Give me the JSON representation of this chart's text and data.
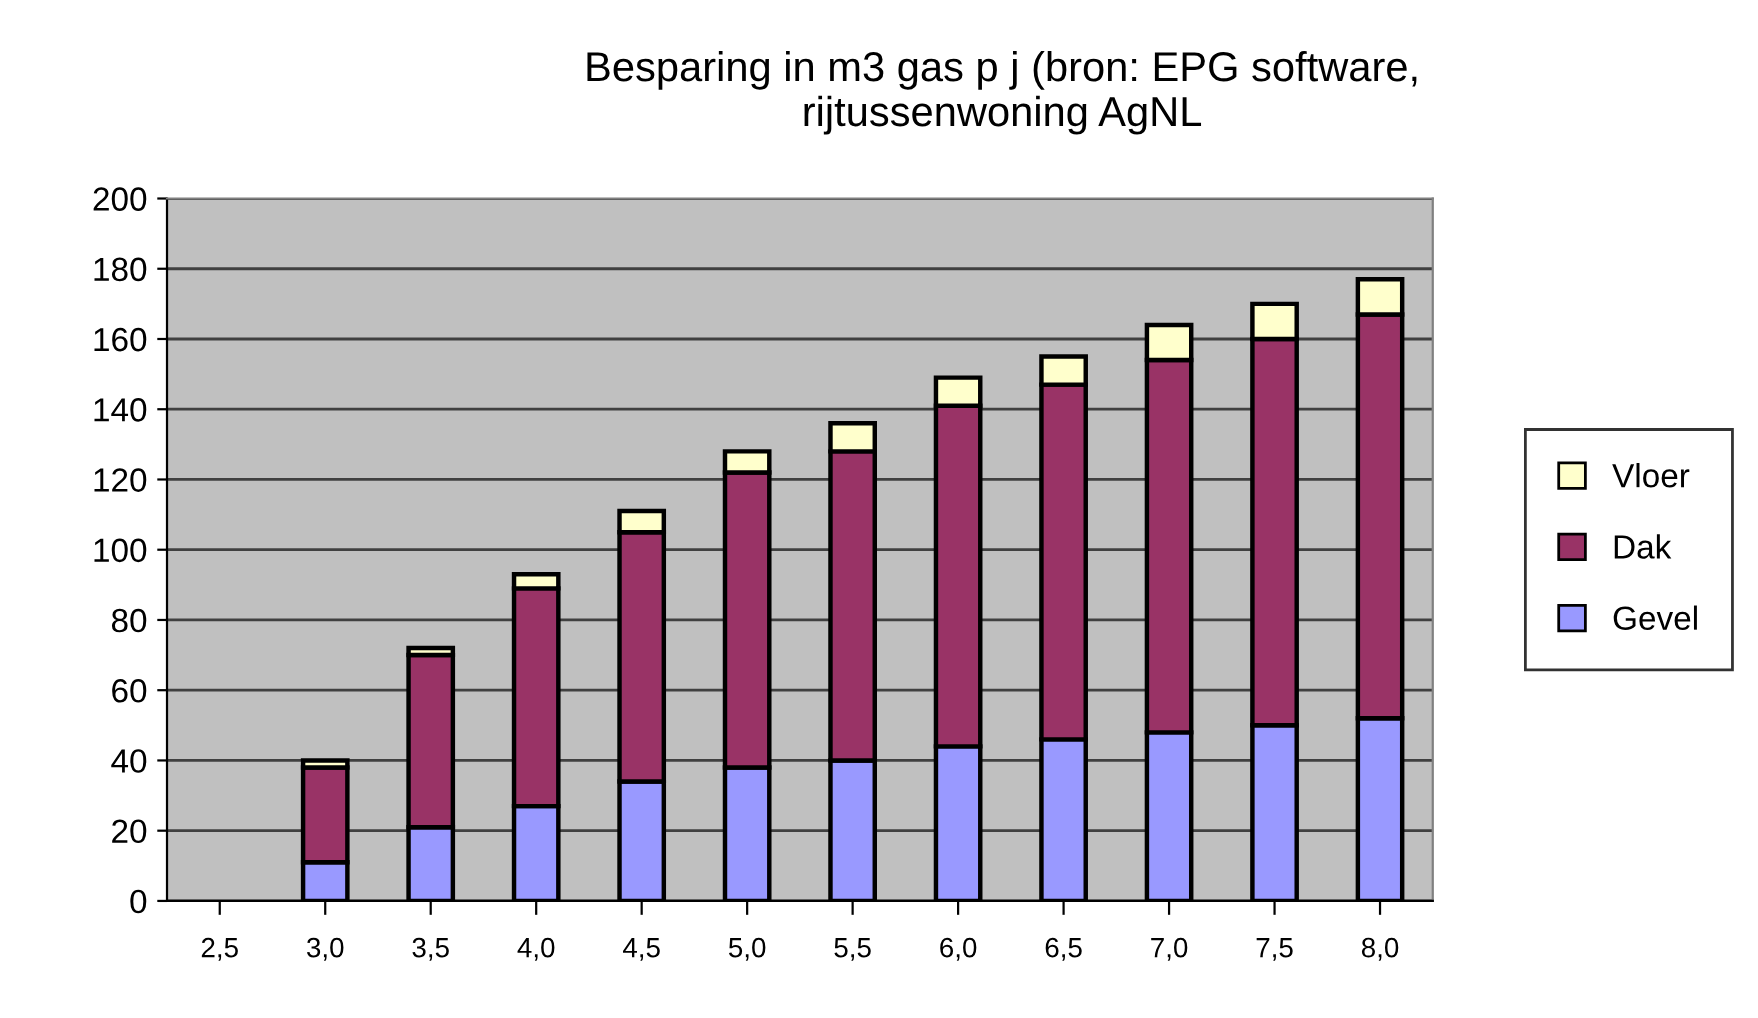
{
  "chart_data": {
    "type": "bar",
    "stacked": true,
    "title": "Besparing in m3 gas p j (bron: EPG software,\nrijtussenwoning AgNL",
    "categories": [
      "2,5",
      "3,0",
      "3,5",
      "4,0",
      "4,5",
      "5,0",
      "5,5",
      "6,0",
      "6,5",
      "7,0",
      "7,5",
      "8,0"
    ],
    "series": [
      {
        "name": "Gevel",
        "color": "#9999ff",
        "values": [
          null,
          11,
          21,
          27,
          34,
          38,
          40,
          44,
          46,
          48,
          50,
          52
        ]
      },
      {
        "name": "Dak",
        "color": "#993366",
        "values": [
          null,
          27,
          49,
          62,
          71,
          84,
          88,
          97,
          101,
          106,
          110,
          115
        ]
      },
      {
        "name": "Vloer",
        "color": "#ffffcc",
        "values": [
          null,
          2,
          2,
          4,
          6,
          6,
          8,
          8,
          8,
          10,
          10,
          10
        ]
      }
    ],
    "ylim": [
      0,
      200
    ],
    "yticks": [
      0,
      20,
      40,
      60,
      80,
      100,
      120,
      140,
      160,
      180,
      200
    ],
    "grid": "y",
    "legend": "right"
  }
}
